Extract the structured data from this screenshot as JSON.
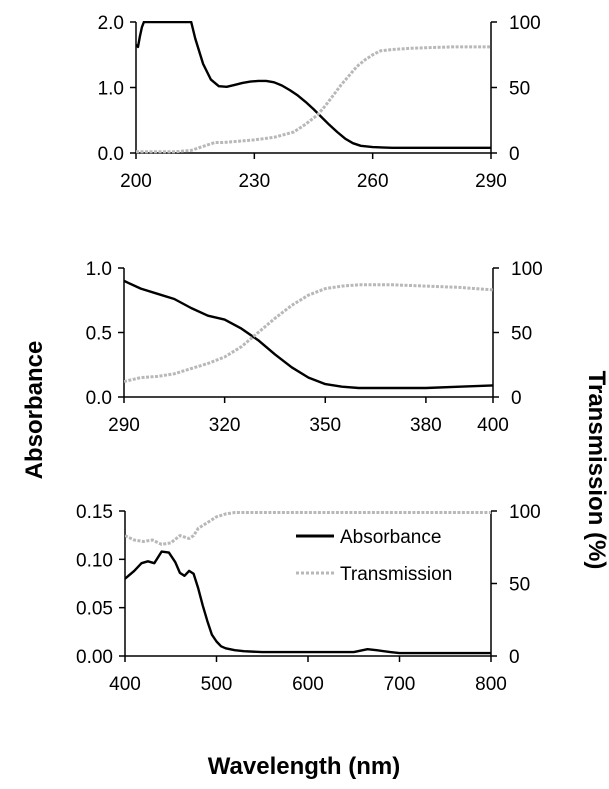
{
  "figure": {
    "left_axis_title": "Absorbance",
    "right_axis_title": "Transmission (%)",
    "x_axis_title": "Wavelength (nm)",
    "legend": {
      "absorbance": "Absorbance",
      "transmission": "Transmission"
    },
    "colors": {
      "absorbance": "#000000",
      "transmission": "#b8b8b8"
    }
  },
  "chart_data": [
    {
      "type": "line",
      "panel": "top",
      "xlim": [
        200,
        290
      ],
      "ylim_left": [
        0,
        2
      ],
      "ylim_right": [
        0,
        100
      ],
      "x_ticks": [
        "200",
        "230",
        "260",
        "290"
      ],
      "y_left_ticks": [
        "0.0",
        "1.0",
        "2.0"
      ],
      "y_right_ticks": [
        "0",
        "50",
        "100"
      ],
      "series": [
        {
          "name": "Absorbance",
          "axis": "left",
          "x": [
            200,
            200.5,
            201,
            201.5,
            202,
            214,
            215,
            217,
            219,
            221,
            223,
            225,
            227,
            229,
            231,
            233,
            235,
            237,
            239,
            241,
            243,
            245,
            247,
            249,
            251,
            253,
            255,
            257,
            260,
            265,
            270,
            280,
            290
          ],
          "y": [
            1.65,
            1.62,
            1.78,
            1.92,
            2.0,
            2.0,
            1.75,
            1.36,
            1.12,
            1.02,
            1.01,
            1.04,
            1.07,
            1.09,
            1.1,
            1.1,
            1.08,
            1.03,
            0.96,
            0.88,
            0.78,
            0.67,
            0.55,
            0.43,
            0.32,
            0.22,
            0.15,
            0.11,
            0.09,
            0.08,
            0.08,
            0.08,
            0.08
          ]
        },
        {
          "name": "Transmission",
          "axis": "right",
          "x": [
            200,
            205,
            210,
            214,
            218,
            220,
            222,
            226,
            230,
            235,
            240,
            243,
            246,
            248,
            250,
            252,
            254,
            256,
            258,
            260,
            262,
            265,
            270,
            280,
            290
          ],
          "y": [
            1,
            1,
            1,
            2,
            6,
            8,
            8,
            9,
            10,
            12,
            16,
            22,
            29,
            36,
            44,
            52,
            59,
            66,
            71,
            75,
            78,
            79,
            80,
            81,
            81
          ]
        }
      ]
    },
    {
      "type": "line",
      "panel": "middle",
      "xlim": [
        290,
        400
      ],
      "ylim_left": [
        0,
        1
      ],
      "ylim_right": [
        0,
        100
      ],
      "x_ticks": [
        "290",
        "320",
        "350",
        "380",
        "400"
      ],
      "y_left_ticks": [
        "0.0",
        "0.5",
        "1.0"
      ],
      "y_right_ticks": [
        "0",
        "50",
        "100"
      ],
      "series": [
        {
          "name": "Absorbance",
          "axis": "left",
          "x": [
            290,
            295,
            300,
            305,
            310,
            315,
            320,
            325,
            330,
            335,
            340,
            345,
            350,
            355,
            360,
            370,
            380,
            390,
            400
          ],
          "y": [
            0.9,
            0.84,
            0.8,
            0.76,
            0.69,
            0.63,
            0.6,
            0.53,
            0.44,
            0.33,
            0.23,
            0.15,
            0.1,
            0.08,
            0.07,
            0.07,
            0.07,
            0.08,
            0.09
          ]
        },
        {
          "name": "Transmission",
          "axis": "right",
          "x": [
            290,
            295,
            300,
            305,
            310,
            315,
            320,
            325,
            330,
            335,
            340,
            345,
            350,
            355,
            360,
            365,
            370,
            380,
            390,
            400
          ],
          "y": [
            12,
            15,
            16,
            18,
            22,
            26,
            31,
            39,
            50,
            61,
            71,
            79,
            84,
            86,
            87,
            87,
            87,
            86,
            85,
            83
          ]
        }
      ]
    },
    {
      "type": "line",
      "panel": "bottom",
      "xlim": [
        400,
        800
      ],
      "ylim_left": [
        0,
        0.15
      ],
      "ylim_right": [
        0,
        100
      ],
      "x_ticks": [
        "400",
        "500",
        "600",
        "700",
        "800"
      ],
      "y_left_ticks": [
        "0.00",
        "0.05",
        "0.10",
        "0.15"
      ],
      "y_right_ticks": [
        "0",
        "50",
        "100"
      ],
      "series": [
        {
          "name": "Absorbance",
          "axis": "left",
          "x": [
            400,
            410,
            418,
            425,
            432,
            440,
            448,
            455,
            460,
            465,
            470,
            475,
            480,
            485,
            490,
            495,
            500,
            505,
            510,
            520,
            530,
            550,
            600,
            650,
            665,
            675,
            690,
            700,
            750,
            800
          ],
          "y": [
            0.08,
            0.088,
            0.096,
            0.098,
            0.096,
            0.108,
            0.107,
            0.097,
            0.086,
            0.083,
            0.088,
            0.085,
            0.07,
            0.052,
            0.036,
            0.022,
            0.015,
            0.01,
            0.008,
            0.006,
            0.005,
            0.004,
            0.004,
            0.004,
            0.007,
            0.006,
            0.004,
            0.003,
            0.003,
            0.003
          ]
        },
        {
          "name": "Transmission",
          "axis": "right",
          "x": [
            400,
            410,
            420,
            430,
            440,
            450,
            460,
            470,
            475,
            480,
            490,
            500,
            510,
            520,
            550,
            600,
            650,
            700,
            750,
            800
          ],
          "y": [
            83,
            80,
            79,
            80,
            77,
            78,
            83,
            81,
            83,
            88,
            92,
            96,
            98,
            99,
            99,
            99,
            99,
            99,
            99,
            99
          ]
        }
      ]
    }
  ]
}
